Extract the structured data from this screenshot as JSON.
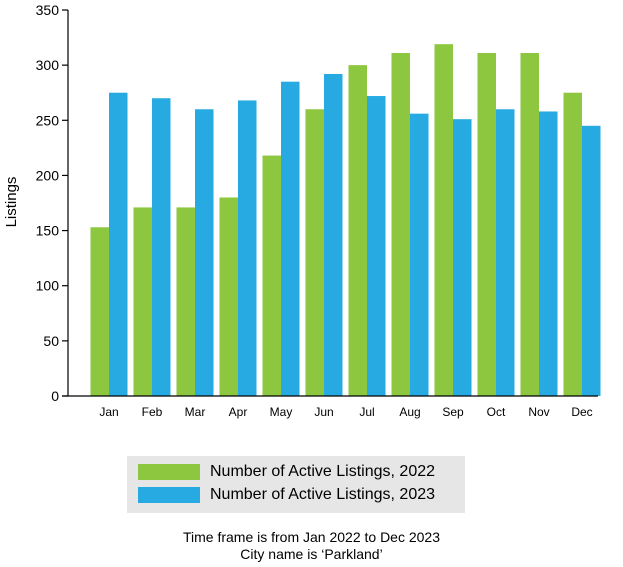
{
  "chart_data": {
    "type": "bar",
    "categories": [
      "Jan",
      "Feb",
      "Mar",
      "Apr",
      "May",
      "Jun",
      "Jul",
      "Aug",
      "Sep",
      "Oct",
      "Nov",
      "Dec"
    ],
    "series": [
      {
        "name": "Number of Active Listings, 2022",
        "color": "#8dc63f",
        "values": [
          153,
          171,
          171,
          180,
          218,
          260,
          300,
          311,
          319,
          311,
          311,
          275
        ]
      },
      {
        "name": "Number of Active Listings, 2023",
        "color": "#27aae1",
        "values": [
          275,
          270,
          260,
          268,
          285,
          292,
          272,
          256,
          251,
          260,
          258,
          245
        ]
      }
    ],
    "ylabel": "Listings",
    "xlabel": "",
    "ylim": [
      0,
      350
    ],
    "yticks": [
      0,
      50,
      100,
      150,
      200,
      250,
      300,
      350
    ],
    "grid": false,
    "legend_position": "bottom"
  },
  "notes": {
    "line1": "Time frame is from Jan 2022 to Dec 2023",
    "line2": "City name is ‘Parkland’"
  }
}
